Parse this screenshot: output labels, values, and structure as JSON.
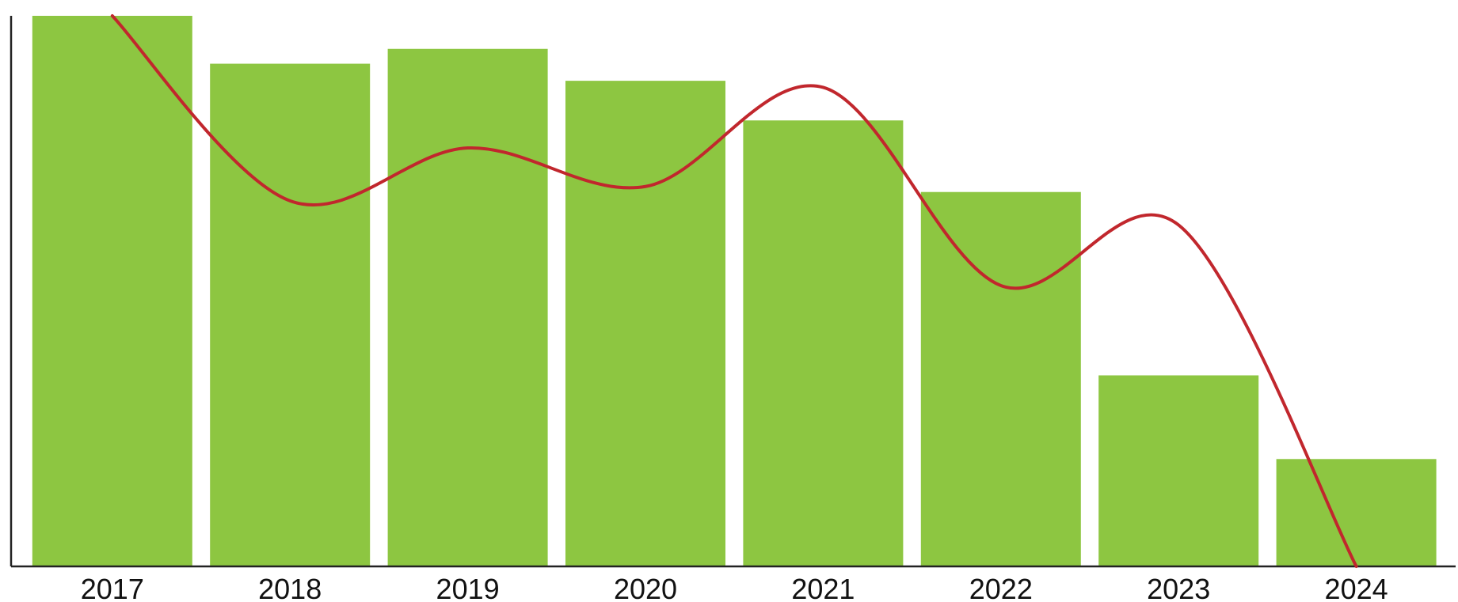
{
  "chart_data": {
    "type": "bar",
    "categories": [
      "2017",
      "2018",
      "2019",
      "2020",
      "2021",
      "2022",
      "2023",
      "2024"
    ],
    "series": [
      {
        "type": "bar",
        "values": [
          100,
          91.3,
          94,
          88.2,
          81,
          68,
          34.7,
          19.5
        ],
        "color": "#8dc641"
      },
      {
        "type": "line",
        "smooth": true,
        "values": [
          100,
          66.4,
          76,
          69,
          87,
          51,
          62,
          0
        ],
        "color": "#c1272d"
      }
    ],
    "title": "",
    "xlabel": "",
    "ylabel": "",
    "ylim": [
      0,
      100
    ],
    "grid": false,
    "legend": "none",
    "axis_color": "#222222"
  }
}
